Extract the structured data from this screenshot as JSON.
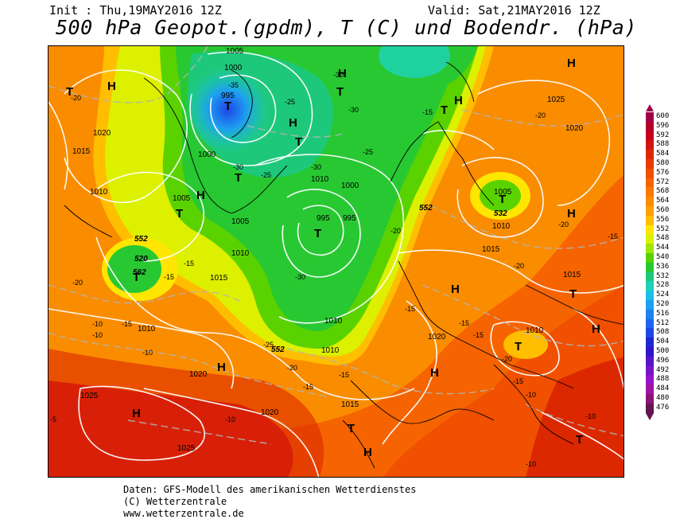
{
  "header": {
    "init": "Init : Thu,19MAY2016 12Z",
    "valid": "Valid: Sat,21MAY2016 12Z",
    "title": "500 hPa Geopot.(gpdm), T (C) und Bodendr. (hPa)"
  },
  "legend": {
    "levels": [
      {
        "label": "600",
        "color": "#a0004a"
      },
      {
        "label": "596",
        "color": "#b4002c"
      },
      {
        "label": "592",
        "color": "#c8001e"
      },
      {
        "label": "588",
        "color": "#d21414"
      },
      {
        "label": "584",
        "color": "#dc2800"
      },
      {
        "label": "580",
        "color": "#e63c00"
      },
      {
        "label": "576",
        "color": "#f05000"
      },
      {
        "label": "572",
        "color": "#f56400"
      },
      {
        "label": "568",
        "color": "#fa7800"
      },
      {
        "label": "564",
        "color": "#fa8c00"
      },
      {
        "label": "560",
        "color": "#ffa000"
      },
      {
        "label": "556",
        "color": "#ffbe00"
      },
      {
        "label": "552",
        "color": "#ffe600"
      },
      {
        "label": "548",
        "color": "#dcf000"
      },
      {
        "label": "544",
        "color": "#a0e600"
      },
      {
        "label": "540",
        "color": "#5ad200"
      },
      {
        "label": "536",
        "color": "#28c832"
      },
      {
        "label": "532",
        "color": "#1ec87a"
      },
      {
        "label": "528",
        "color": "#1ed2b4"
      },
      {
        "label": "524",
        "color": "#1ebee6"
      },
      {
        "label": "520",
        "color": "#1ea0f0"
      },
      {
        "label": "516",
        "color": "#1e82f0"
      },
      {
        "label": "512",
        "color": "#1e64f0"
      },
      {
        "label": "508",
        "color": "#1e46e6"
      },
      {
        "label": "504",
        "color": "#1e28d2"
      },
      {
        "label": "500",
        "color": "#3214c8"
      },
      {
        "label": "496",
        "color": "#5a14c8"
      },
      {
        "label": "492",
        "color": "#7814c8"
      },
      {
        "label": "488",
        "color": "#9614c8"
      },
      {
        "label": "484",
        "color": "#a014a0"
      },
      {
        "label": "480",
        "color": "#8c1478"
      },
      {
        "label": "476",
        "color": "#641450"
      }
    ]
  },
  "map": {
    "pressure_labels": [
      "1005",
      "995",
      "1000",
      "1010",
      "1015",
      "1020",
      "1025",
      "1000",
      "1005",
      "1010",
      "995",
      "995",
      "1000",
      "1005",
      "1010",
      "1015",
      "1020",
      "1005",
      "1010",
      "1015",
      "1020",
      "1010",
      "1015",
      "1010",
      "1025",
      "1020",
      "1020",
      "1025",
      "1015",
      "1010",
      "1010"
    ],
    "geopotential_labels": [
      "552",
      "552",
      "552",
      "532",
      "562",
      "520"
    ],
    "temperature_labels": [
      "-20",
      "-35",
      "-30",
      "-25",
      "-30",
      "-25",
      "-30",
      "-20",
      "-25",
      "-30",
      "-15",
      "-20",
      "-30",
      "-15",
      "-10",
      "-10",
      "-15",
      "-10",
      "-20",
      "-15",
      "-15",
      "-25",
      "-15",
      "-15",
      "-20",
      "-20",
      "-15",
      "-15",
      "-20",
      "-10",
      "-10",
      "-20",
      "-15",
      "-10",
      "-10",
      "-5",
      "-15"
    ],
    "high_marker": "H",
    "low_marker": "T"
  },
  "footer": {
    "line1": "Daten: GFS-Modell des amerikanischen Wetterdienstes",
    "line2": "(C) Wetterzentrale",
    "line3": "www.wetterzentrale.de"
  }
}
